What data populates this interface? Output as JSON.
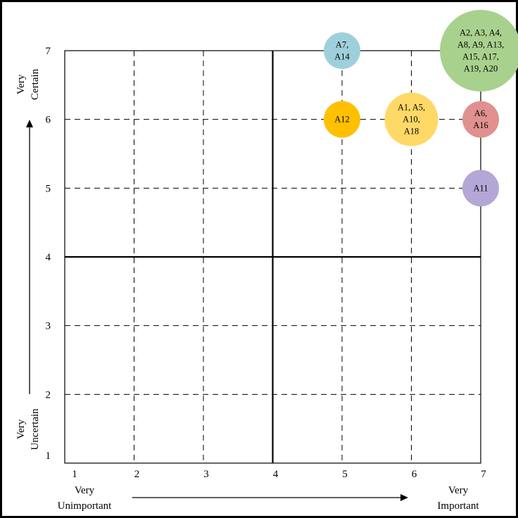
{
  "chart_data": {
    "type": "scatter",
    "title": "",
    "x_ticks": [
      "1",
      "2",
      "3",
      "4",
      "5",
      "6",
      "7"
    ],
    "y_ticks": [
      "1",
      "2",
      "3",
      "4",
      "5",
      "6",
      "7"
    ],
    "xlim": [
      1,
      7
    ],
    "ylim": [
      1,
      7
    ],
    "grid": "dashed",
    "quadrant_divider": {
      "x": 4,
      "y": 4
    },
    "x_axis": {
      "low_label": "Very\nUnimportant",
      "high_label": "Very\nImportant"
    },
    "y_axis": {
      "low_label": "Very\nUncertain",
      "high_label": "Very\nCertain"
    },
    "points": [
      {
        "x": 5,
        "y": 7,
        "label": "A7,\nA14",
        "color": "#9ED0DC",
        "count": 2
      },
      {
        "x": 7,
        "y": 7,
        "label": "A2, A3, A4,\nA8, A9, A13,\nA15, A17,\nA19, A20",
        "color": "#A9D18E",
        "count": 10
      },
      {
        "x": 5,
        "y": 6,
        "label": "A12",
        "color": "#FFC000",
        "count": 1
      },
      {
        "x": 6,
        "y": 6,
        "label": "A1, A5,\nA10,\nA18",
        "color": "#FFD966",
        "count": 4
      },
      {
        "x": 7,
        "y": 6,
        "label": "A6,\nA16",
        "color": "#E0918F",
        "count": 2
      },
      {
        "x": 7,
        "y": 5,
        "label": "A11",
        "color": "#B4A7D6",
        "count": 1
      }
    ]
  }
}
